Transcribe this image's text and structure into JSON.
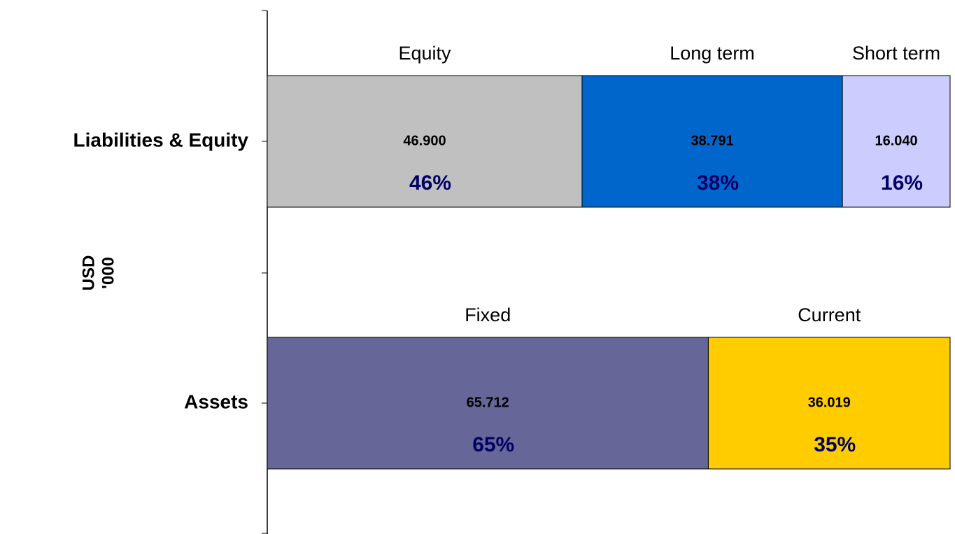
{
  "chart_data": {
    "type": "stacked_barh",
    "y_label": [
      "USD",
      "'000"
    ],
    "categories": [
      "Liabilities & Equity",
      "Assets"
    ],
    "xlim": [
      0,
      101.731
    ],
    "series": [
      {
        "name": "Equity",
        "color": "#c0c0c0",
        "values": [
          46.9,
          null
        ],
        "value_labels": [
          "46.900",
          null
        ],
        "percents": [
          46,
          null
        ],
        "percent_labels": [
          "46%",
          null
        ]
      },
      {
        "name": "Long term",
        "color": "#0066cc",
        "values": [
          38.791,
          null
        ],
        "value_labels": [
          "38.791",
          null
        ],
        "percents": [
          38,
          null
        ],
        "percent_labels": [
          "38%",
          null
        ]
      },
      {
        "name": "Short term",
        "color": "#ccccff",
        "values": [
          16.04,
          null
        ],
        "value_labels": [
          "16.040",
          null
        ],
        "percents": [
          16,
          null
        ],
        "percent_labels": [
          "16%",
          null
        ]
      },
      {
        "name": "Fixed",
        "color": "#666699",
        "values": [
          null,
          65.712
        ],
        "value_labels": [
          null,
          "65.712"
        ],
        "percents": [
          null,
          65
        ],
        "percent_labels": [
          null,
          "65%"
        ]
      },
      {
        "name": "Current",
        "color": "#ffcc00",
        "values": [
          null,
          36.019
        ],
        "value_labels": [
          null,
          "36.019"
        ],
        "percents": [
          null,
          35
        ],
        "percent_labels": [
          null,
          "35%"
        ]
      }
    ]
  }
}
